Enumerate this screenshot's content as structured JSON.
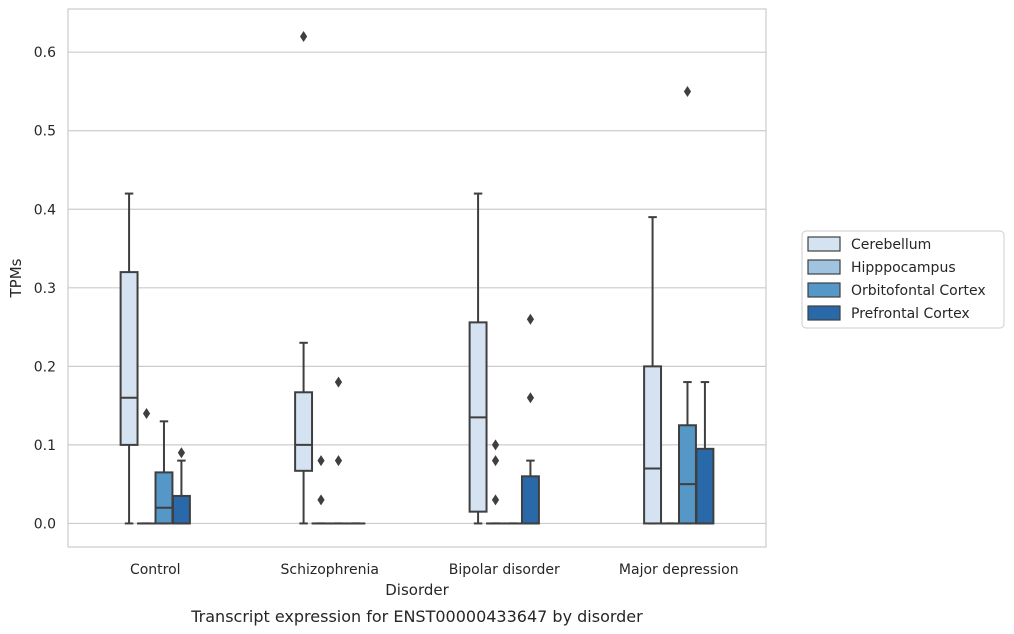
{
  "chart_data": {
    "type": "box",
    "title": "",
    "caption": "Transcript expression for ENST00000433647 by disorder",
    "xlabel": "Disorder",
    "ylabel": "TPMs",
    "ylim": [
      -0.03,
      0.655
    ],
    "yticks": [
      "0.0",
      "0.1",
      "0.2",
      "0.3",
      "0.4",
      "0.5",
      "0.6"
    ],
    "grid": "horizontal",
    "legend_position": "right",
    "categories": [
      "Control",
      "Schizophrenia",
      "Bipolar disorder",
      "Major depression"
    ],
    "series": [
      {
        "name": "Cerebellum",
        "color": "#d4e2f1",
        "boxes": [
          {
            "whisker_low": 0.0,
            "q1": 0.1,
            "median": 0.16,
            "q3": 0.32,
            "whisker_high": 0.42,
            "outliers": []
          },
          {
            "whisker_low": 0.0,
            "q1": 0.067,
            "median": 0.1,
            "q3": 0.167,
            "whisker_high": 0.23,
            "outliers": [
              0.62
            ]
          },
          {
            "whisker_low": 0.0,
            "q1": 0.015,
            "median": 0.135,
            "q3": 0.256,
            "whisker_high": 0.42,
            "outliers": []
          },
          {
            "whisker_low": 0.0,
            "q1": 0.0,
            "median": 0.07,
            "q3": 0.2,
            "whisker_high": 0.39,
            "outliers": []
          }
        ]
      },
      {
        "name": "Hipppocampus",
        "color": "#a0c4e0",
        "boxes": [
          {
            "whisker_low": 0.0,
            "q1": 0.0,
            "median": 0.0,
            "q3": 0.0,
            "whisker_high": 0.0,
            "outliers": [
              0.14
            ]
          },
          {
            "whisker_low": 0.0,
            "q1": 0.0,
            "median": 0.0,
            "q3": 0.0,
            "whisker_high": 0.0,
            "outliers": [
              0.03,
              0.08
            ]
          },
          {
            "whisker_low": 0.0,
            "q1": 0.0,
            "median": 0.0,
            "q3": 0.0,
            "whisker_high": 0.0,
            "outliers": [
              0.03,
              0.08,
              0.1
            ]
          },
          {
            "whisker_low": 0.0,
            "q1": 0.0,
            "median": 0.0,
            "q3": 0.0,
            "whisker_high": 0.0,
            "outliers": []
          }
        ]
      },
      {
        "name": "Orbitofontal Cortex",
        "color": "#5597c6",
        "boxes": [
          {
            "whisker_low": 0.0,
            "q1": 0.0,
            "median": 0.02,
            "q3": 0.065,
            "whisker_high": 0.13,
            "outliers": []
          },
          {
            "whisker_low": 0.0,
            "q1": 0.0,
            "median": 0.0,
            "q3": 0.0,
            "whisker_high": 0.0,
            "outliers": [
              0.08,
              0.18
            ]
          },
          {
            "whisker_low": 0.0,
            "q1": 0.0,
            "median": 0.0,
            "q3": 0.0,
            "whisker_high": 0.0,
            "outliers": []
          },
          {
            "whisker_low": 0.0,
            "q1": 0.0,
            "median": 0.05,
            "q3": 0.125,
            "whisker_high": 0.18,
            "outliers": [
              0.55
            ]
          }
        ]
      },
      {
        "name": "Prefrontal Cortex",
        "color": "#2a69a9",
        "boxes": [
          {
            "whisker_low": 0.0,
            "q1": 0.0,
            "median": 0.0,
            "q3": 0.035,
            "whisker_high": 0.08,
            "outliers": [
              0.09
            ]
          },
          {
            "whisker_low": 0.0,
            "q1": 0.0,
            "median": 0.0,
            "q3": 0.0,
            "whisker_high": 0.0,
            "outliers": []
          },
          {
            "whisker_low": 0.0,
            "q1": 0.0,
            "median": 0.0,
            "q3": 0.06,
            "whisker_high": 0.08,
            "outliers": [
              0.16,
              0.26
            ]
          },
          {
            "whisker_low": 0.0,
            "q1": 0.0,
            "median": 0.0,
            "q3": 0.095,
            "whisker_high": 0.18,
            "outliers": []
          }
        ]
      }
    ]
  }
}
